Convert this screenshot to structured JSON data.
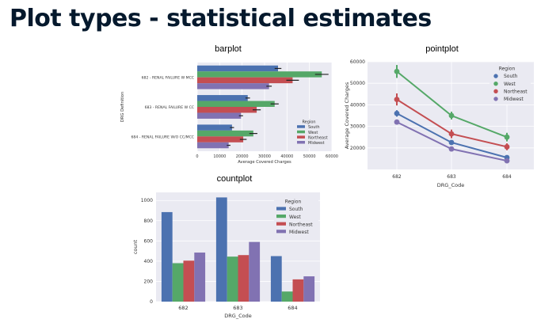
{
  "slide": {
    "title": "Plot types - statistical estimates"
  },
  "colors": {
    "South": "#4c72b0",
    "West": "#55a868",
    "Northeast": "#c44e52",
    "Midwest": "#8172b2",
    "panel_bg": "#eaeaf2",
    "grid": "#ffffff"
  },
  "chart_data": [
    {
      "type": "bar",
      "title": "barplot",
      "orientation": "horizontal",
      "categories": [
        "682 - RENAL FAILURE W MCC",
        "683 - RENAL FAILURE W CC",
        "684 - RENAL FAILURE W/O CC/MCC"
      ],
      "series": [
        {
          "name": "South",
          "values": [
            36000,
            22500,
            15500
          ],
          "err": [
            1500,
            1000,
            900
          ]
        },
        {
          "name": "West",
          "values": [
            55500,
            34500,
            25000
          ],
          "err": [
            3000,
            1800,
            1800
          ]
        },
        {
          "name": "Northeast",
          "values": [
            42500,
            26500,
            20500
          ],
          "err": [
            2800,
            1800,
            1500
          ]
        },
        {
          "name": "Midwest",
          "values": [
            32000,
            19500,
            14000
          ],
          "err": [
            1200,
            900,
            800
          ]
        }
      ],
      "xlabel": "Average Covered Charges",
      "ylabel": "DRG Definition",
      "xlim": [
        0,
        60000
      ],
      "xticks": [
        0,
        10000,
        20000,
        30000,
        40000,
        50000,
        60000
      ],
      "legend": {
        "title": "Region",
        "placement": "lower-right"
      },
      "grid": true
    },
    {
      "type": "line",
      "title": "pointplot",
      "categories": [
        "682",
        "683",
        "684"
      ],
      "series": [
        {
          "name": "South",
          "values": [
            36000,
            22500,
            15500
          ],
          "err": [
            1500,
            1000,
            900
          ]
        },
        {
          "name": "West",
          "values": [
            55500,
            35000,
            25000
          ],
          "err": [
            3000,
            1800,
            2000
          ]
        },
        {
          "name": "Northeast",
          "values": [
            42500,
            26500,
            20500
          ],
          "err": [
            2800,
            2000,
            1600
          ]
        },
        {
          "name": "Midwest",
          "values": [
            32000,
            19500,
            14000
          ],
          "err": [
            1200,
            900,
            800
          ]
        }
      ],
      "xlabel": "DRG_Code",
      "ylabel": "Average Covered Charges",
      "ylim": [
        10000,
        60000
      ],
      "yticks": [
        20000,
        30000,
        40000,
        50000,
        60000
      ],
      "legend": {
        "title": "Region",
        "placement": "top-right"
      },
      "grid": true
    },
    {
      "type": "bar",
      "title": "countplot",
      "categories": [
        "682",
        "683",
        "684"
      ],
      "series": [
        {
          "name": "South",
          "values": [
            885,
            1030,
            450
          ]
        },
        {
          "name": "West",
          "values": [
            380,
            445,
            100
          ]
        },
        {
          "name": "Northeast",
          "values": [
            405,
            460,
            220
          ]
        },
        {
          "name": "Midwest",
          "values": [
            485,
            590,
            250
          ]
        }
      ],
      "xlabel": "DRG_Code",
      "ylabel": "count",
      "ylim": [
        0,
        1080
      ],
      "yticks": [
        0,
        200,
        400,
        600,
        800,
        1000
      ],
      "legend": {
        "title": "Region",
        "placement": "top-right"
      },
      "grid": true
    }
  ]
}
